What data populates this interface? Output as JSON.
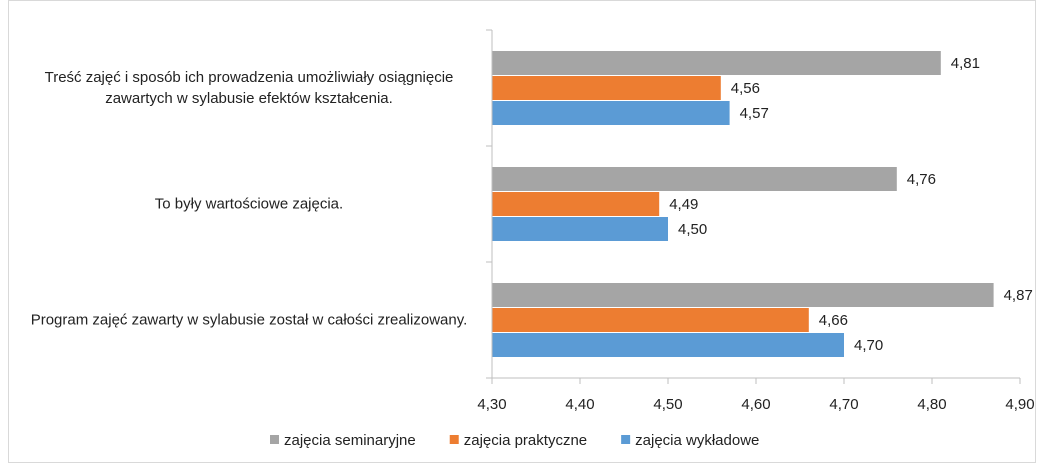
{
  "chart_data": {
    "type": "hbar",
    "categories": [
      "Treść zajęć i sposób ich prowadzenia umożliwiały osiągnięcie zawartych w sylabusie efektów kształcenia.",
      "To były wartościowe zajęcia.",
      "Program zajęć zawarty w sylabusie został w całości zrealizowany."
    ],
    "series": [
      {
        "name": "zajęcia seminaryjne",
        "color": "#a5a5a5",
        "values": [
          4.81,
          4.76,
          4.87
        ],
        "value_labels": [
          "4,81",
          "4,76",
          "4,87"
        ]
      },
      {
        "name": "zajęcia praktyczne",
        "color": "#ed7d31",
        "values": [
          4.56,
          4.49,
          4.66
        ],
        "value_labels": [
          "4,56",
          "4,49",
          "4,66"
        ]
      },
      {
        "name": "zajęcia wykładowe",
        "color": "#5b9bd5",
        "values": [
          4.57,
          4.5,
          4.7
        ],
        "value_labels": [
          "4,57",
          "4,50",
          "4,70"
        ]
      }
    ],
    "xlim": [
      4.3,
      4.9
    ],
    "xticks": [
      {
        "value": 4.3,
        "label": "4,30"
      },
      {
        "value": 4.4,
        "label": "4,40"
      },
      {
        "value": 4.5,
        "label": "4,50"
      },
      {
        "value": 4.6,
        "label": "4,60"
      },
      {
        "value": 4.7,
        "label": "4,70"
      },
      {
        "value": 4.8,
        "label": "4,80"
      },
      {
        "value": 4.9,
        "label": "4,90"
      }
    ],
    "legend": "bottom"
  }
}
